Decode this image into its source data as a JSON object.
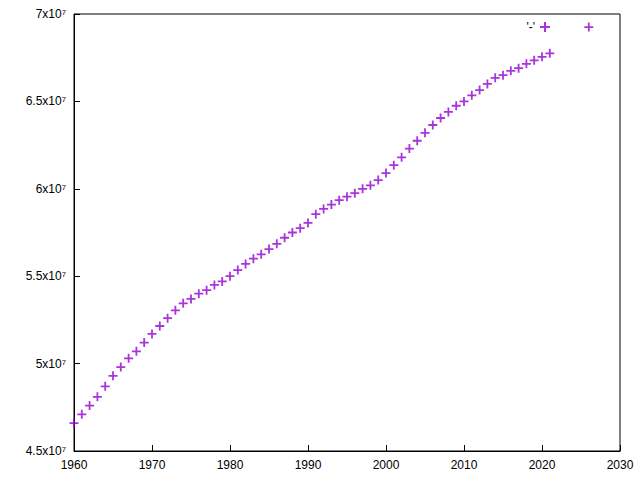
{
  "chart_data": {
    "type": "scatter",
    "marker": "plus",
    "legend": "top-right",
    "grid": false,
    "series": [
      {
        "name": "'-'",
        "color": "#9400d3",
        "x": [
          1960,
          1961,
          1962,
          1963,
          1964,
          1965,
          1966,
          1967,
          1968,
          1969,
          1970,
          1971,
          1972,
          1973,
          1974,
          1975,
          1976,
          1977,
          1978,
          1979,
          1980,
          1981,
          1982,
          1983,
          1984,
          1985,
          1986,
          1987,
          1988,
          1989,
          1990,
          1991,
          1992,
          1993,
          1994,
          1995,
          1996,
          1997,
          1998,
          1999,
          2000,
          2001,
          2002,
          2003,
          2004,
          2005,
          2006,
          2007,
          2008,
          2009,
          2010,
          2011,
          2012,
          2013,
          2014,
          2015,
          2016,
          2017,
          2018,
          2019,
          2020,
          2021,
          2026
        ],
        "values": [
          46600000,
          47100000,
          47600000,
          48100000,
          48700000,
          49300000,
          49800000,
          50300000,
          50700000,
          51200000,
          51700000,
          52150000,
          52600000,
          53050000,
          53450000,
          53700000,
          54000000,
          54200000,
          54500000,
          54700000,
          55000000,
          55350000,
          55700000,
          56000000,
          56250000,
          56550000,
          56850000,
          57200000,
          57500000,
          57750000,
          58050000,
          58550000,
          58850000,
          59100000,
          59350000,
          59550000,
          59750000,
          60000000,
          60200000,
          60500000,
          60900000,
          61350000,
          61800000,
          62300000,
          62750000,
          63200000,
          63650000,
          64050000,
          64400000,
          64750000,
          65000000,
          65350000,
          65650000,
          66000000,
          66350000,
          66500000,
          66750000,
          66900000,
          67150000,
          67350000,
          67550000,
          67750000,
          69250000
        ]
      }
    ],
    "xlim": [
      1960,
      2030
    ],
    "xticks": [
      1960,
      1970,
      1980,
      1990,
      2000,
      2010,
      2020,
      2030
    ],
    "ylim": [
      45000000,
      70000000
    ],
    "yticks": [
      {
        "value": 45000000,
        "label": "4.5x10⁷"
      },
      {
        "value": 50000000,
        "label": "5x10⁷"
      },
      {
        "value": 55000000,
        "label": "5.5x10⁷"
      },
      {
        "value": 60000000,
        "label": "6x10⁷"
      },
      {
        "value": 65000000,
        "label": "6.5x10⁷"
      },
      {
        "value": 70000000,
        "label": "7x10⁷"
      }
    ]
  }
}
